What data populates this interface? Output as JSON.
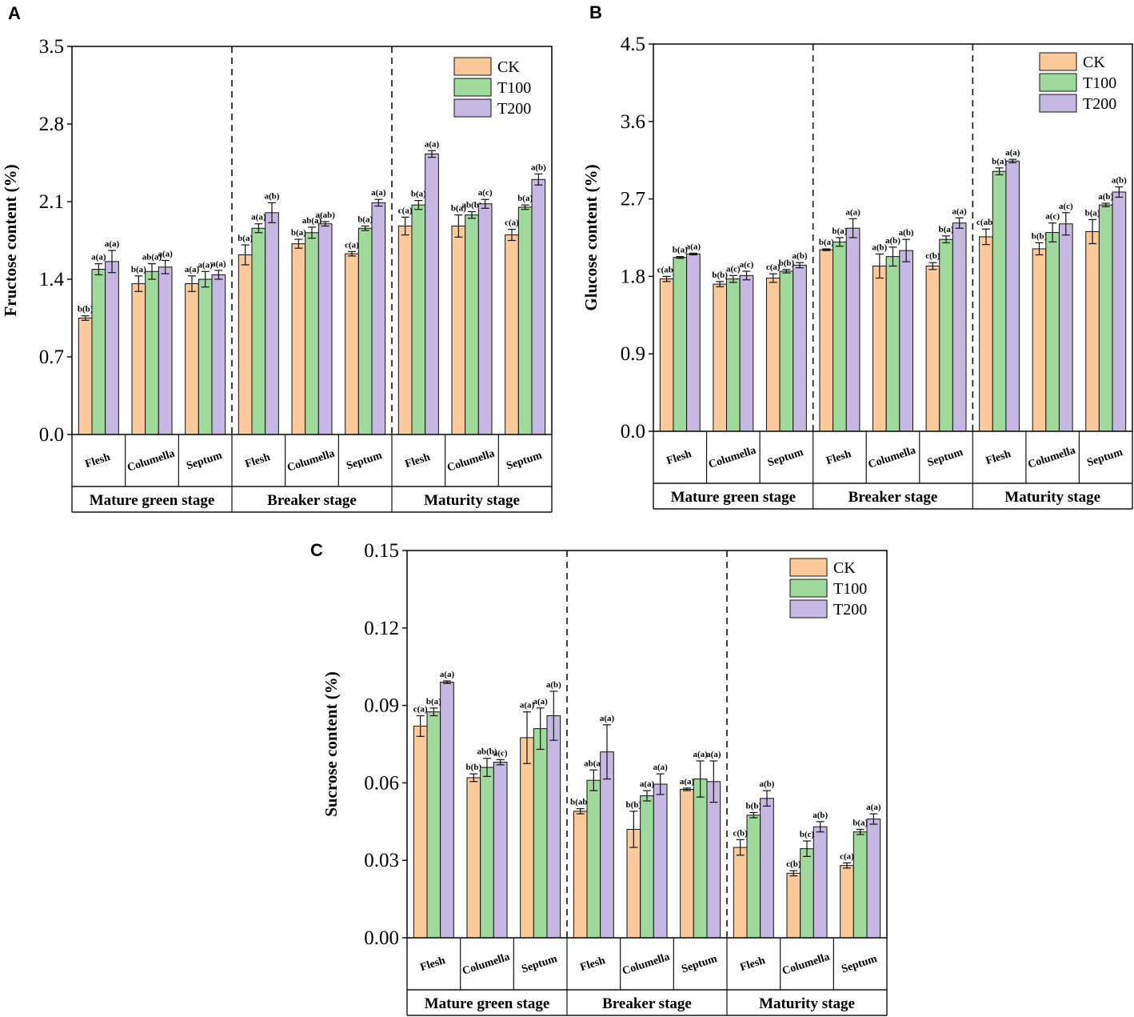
{
  "legend": [
    {
      "name": "CK",
      "color": "#fcc99b"
    },
    {
      "name": "T100",
      "color": "#9fd99b"
    },
    {
      "name": "T200",
      "color": "#c7b8e3"
    }
  ],
  "chart_data": [
    {
      "panel_label": "A",
      "type": "bar",
      "ylabel": "Fructose content (%)",
      "ylim": [
        0,
        3.5
      ],
      "yticks": [
        "0.0",
        "0.7",
        "1.4",
        "2.1",
        "2.8",
        "3.5"
      ],
      "stages": [
        "Mature green stage",
        "Breaker stage",
        "Maturity stage"
      ],
      "tissues": [
        "Flesh",
        "Columella",
        "Septum"
      ],
      "series_names": [
        "CK",
        "T100",
        "T200"
      ],
      "groups": [
        {
          "values": [
            1.05,
            1.49,
            1.56
          ],
          "errors": [
            0.02,
            0.05,
            0.1
          ],
          "labels": [
            "b(b)",
            "a(a)",
            "a(a)"
          ]
        },
        {
          "values": [
            1.36,
            1.47,
            1.51
          ],
          "errors": [
            0.07,
            0.07,
            0.06
          ],
          "labels": [
            "b(a)",
            "ab(a)",
            "a(a)"
          ]
        },
        {
          "values": [
            1.36,
            1.4,
            1.44
          ],
          "errors": [
            0.07,
            0.07,
            0.04
          ],
          "labels": [
            "a(a)",
            "a(a)",
            "a(a)"
          ]
        },
        {
          "values": [
            1.62,
            1.86,
            2.0
          ],
          "errors": [
            0.09,
            0.04,
            0.09
          ],
          "labels": [
            "b(a)",
            "a(a)",
            "a(b)"
          ]
        },
        {
          "values": [
            1.72,
            1.82,
            1.9
          ],
          "errors": [
            0.04,
            0.05,
            0.02
          ],
          "labels": [
            "b(a)",
            "ab(a)",
            "a(ab)"
          ]
        },
        {
          "values": [
            1.63,
            1.86,
            2.09
          ],
          "errors": [
            0.02,
            0.02,
            0.03
          ],
          "labels": [
            "c(a)",
            "b(a)",
            "a(a)"
          ]
        },
        {
          "values": [
            1.88,
            2.07,
            2.53
          ],
          "errors": [
            0.08,
            0.04,
            0.03
          ],
          "labels": [
            "c(a)",
            "b(a)",
            "a(a)"
          ]
        },
        {
          "values": [
            1.88,
            1.98,
            2.08
          ],
          "errors": [
            0.1,
            0.03,
            0.04
          ],
          "labels": [
            "b(a)",
            "ab(b)",
            "a(c)"
          ]
        },
        {
          "values": [
            1.8,
            2.05,
            2.3
          ],
          "errors": [
            0.05,
            0.02,
            0.05
          ],
          "labels": [
            "c(a)",
            "b(a)",
            "a(b)"
          ]
        }
      ]
    },
    {
      "panel_label": "B",
      "type": "bar",
      "ylabel": "Glucose content (%)",
      "ylim": [
        0,
        4.5
      ],
      "yticks": [
        "0.0",
        "0.9",
        "1.8",
        "2.7",
        "3.6",
        "4.5"
      ],
      "stages": [
        "Mature green stage",
        "Breaker stage",
        "Maturity stage"
      ],
      "tissues": [
        "Flesh",
        "Columella",
        "Septum"
      ],
      "series_names": [
        "CK",
        "T100",
        "T200"
      ],
      "groups": [
        {
          "values": [
            1.77,
            2.02,
            2.06
          ],
          "errors": [
            0.03,
            0.01,
            0.01
          ],
          "labels": [
            "c(ab)",
            "b(a)",
            "a(a)"
          ]
        },
        {
          "values": [
            1.71,
            1.77,
            1.81
          ],
          "errors": [
            0.03,
            0.04,
            0.05
          ],
          "labels": [
            "b(b)",
            "a(c)",
            "a(c)"
          ]
        },
        {
          "values": [
            1.78,
            1.86,
            1.93
          ],
          "errors": [
            0.05,
            0.02,
            0.03
          ],
          "labels": [
            "c(a)",
            "b(b)",
            "a(b)"
          ]
        },
        {
          "values": [
            2.11,
            2.2,
            2.36
          ],
          "errors": [
            0.01,
            0.05,
            0.11
          ],
          "labels": [
            "b(a)",
            "b(a)",
            "a(a)"
          ]
        },
        {
          "values": [
            1.92,
            2.03,
            2.1
          ],
          "errors": [
            0.14,
            0.11,
            0.13
          ],
          "labels": [
            "a(b)",
            "a(b)",
            "a(b)"
          ]
        },
        {
          "values": [
            1.92,
            2.23,
            2.42
          ],
          "errors": [
            0.04,
            0.04,
            0.06
          ],
          "labels": [
            "c(b)",
            "b(a)",
            "a(a)"
          ]
        },
        {
          "values": [
            2.26,
            3.02,
            3.14
          ],
          "errors": [
            0.09,
            0.04,
            0.02
          ],
          "labels": [
            "c(ab)",
            "b(a)",
            "a(a)"
          ]
        },
        {
          "values": [
            2.12,
            2.31,
            2.41
          ],
          "errors": [
            0.07,
            0.11,
            0.13
          ],
          "labels": [
            "b(b)",
            "a(c)",
            "a(c)"
          ]
        },
        {
          "values": [
            2.32,
            2.63,
            2.78
          ],
          "errors": [
            0.14,
            0.02,
            0.06
          ],
          "labels": [
            "b(a)",
            "a(b)",
            "a(b)"
          ]
        }
      ]
    },
    {
      "panel_label": "C",
      "type": "bar",
      "ylabel": "Sucrose content (%)",
      "ylim": [
        0,
        0.15
      ],
      "yticks": [
        "0.00",
        "0.03",
        "0.06",
        "0.09",
        "0.12",
        "0.15"
      ],
      "stages": [
        "Mature green stage",
        "Breaker stage",
        "Maturity stage"
      ],
      "tissues": [
        "Flesh",
        "Columella",
        "Septum"
      ],
      "series_names": [
        "CK",
        "T100",
        "T200"
      ],
      "groups": [
        {
          "values": [
            0.082,
            0.0875,
            0.099
          ],
          "errors": [
            0.004,
            0.0015,
            0.0005
          ],
          "labels": [
            "c(a)",
            "b(a)",
            "a(a)"
          ]
        },
        {
          "values": [
            0.062,
            0.066,
            0.068
          ],
          "errors": [
            0.0015,
            0.0035,
            0.001
          ],
          "labels": [
            "b(b)",
            "ab(b)",
            "a(c)"
          ]
        },
        {
          "values": [
            0.0775,
            0.081,
            0.086
          ],
          "errors": [
            0.01,
            0.008,
            0.0095
          ],
          "labels": [
            "a(a)",
            "a(a)",
            "a(b)"
          ]
        },
        {
          "values": [
            0.049,
            0.061,
            0.072
          ],
          "errors": [
            0.001,
            0.004,
            0.0105
          ],
          "labels": [
            "b(ab)",
            "ab(a)",
            "a(a)"
          ]
        },
        {
          "values": [
            0.042,
            0.055,
            0.0595
          ],
          "errors": [
            0.007,
            0.002,
            0.004
          ],
          "labels": [
            "b(b)",
            "a(a)",
            "a(a)"
          ]
        },
        {
          "values": [
            0.0575,
            0.0615,
            0.0605
          ],
          "errors": [
            0.0005,
            0.007,
            0.008
          ],
          "labels": [
            "a(a)",
            "a(a)",
            "a(a)"
          ]
        },
        {
          "values": [
            0.035,
            0.0475,
            0.054
          ],
          "errors": [
            0.003,
            0.001,
            0.003
          ],
          "labels": [
            "c(b)",
            "b(b)",
            "a(b)"
          ]
        },
        {
          "values": [
            0.025,
            0.0345,
            0.043
          ],
          "errors": [
            0.001,
            0.003,
            0.002
          ],
          "labels": [
            "c(b)",
            "b(c)",
            "a(b)"
          ]
        },
        {
          "values": [
            0.028,
            0.041,
            0.046
          ],
          "errors": [
            0.001,
            0.001,
            0.002
          ],
          "labels": [
            "c(a)",
            "b(a)",
            "a(a)"
          ]
        }
      ]
    }
  ]
}
